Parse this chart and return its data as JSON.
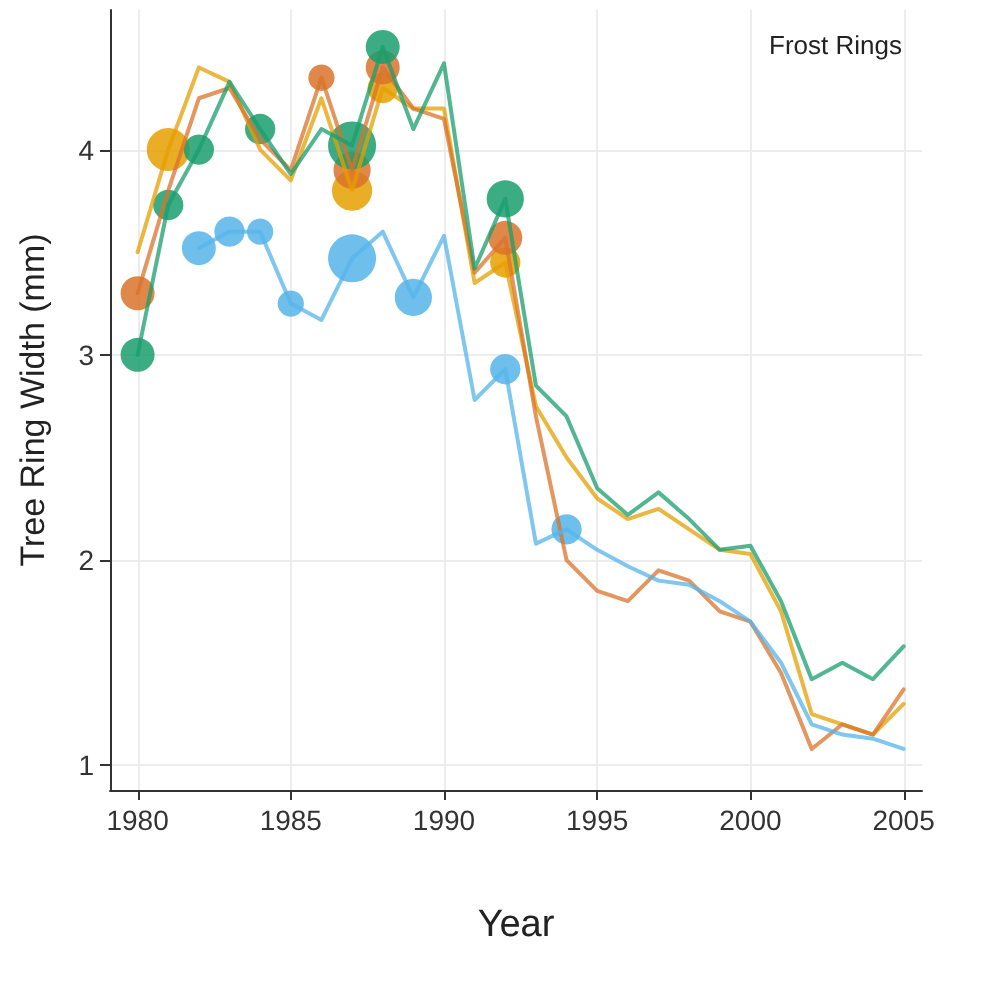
{
  "chart_data": {
    "type": "line",
    "xlabel": "Year",
    "ylabel": "Tree Ring Width (mm)",
    "legend_title": "Frost Rings",
    "grid": true,
    "x": [
      1980,
      1981,
      1982,
      1983,
      1984,
      1985,
      1986,
      1987,
      1988,
      1989,
      1990,
      1991,
      1992,
      1993,
      1994,
      1995,
      1996,
      1997,
      1998,
      1999,
      2000,
      2001,
      2002,
      2003,
      2004,
      2005
    ],
    "xlim": [
      1979.1,
      2005.6
    ],
    "xticks": [
      1980,
      1985,
      1990,
      1995,
      2000,
      2005
    ],
    "ylim": [
      0.88,
      4.68
    ],
    "yticks": [
      1,
      2,
      3,
      4
    ],
    "series": [
      {
        "color": "#e69f00",
        "values": [
          3.5,
          4.0,
          4.4,
          4.33,
          4.0,
          3.85,
          4.25,
          3.8,
          4.3,
          4.2,
          4.2,
          3.35,
          3.45,
          2.75,
          2.5,
          2.3,
          2.2,
          2.25,
          2.15,
          2.05,
          2.03,
          1.75,
          1.25,
          1.2,
          1.15,
          1.3
        ]
      },
      {
        "color": "#d9732a",
        "values": [
          3.3,
          3.8,
          4.25,
          4.3,
          4.05,
          3.9,
          4.35,
          3.9,
          4.4,
          4.2,
          4.15,
          3.4,
          3.57,
          2.7,
          2.0,
          1.85,
          1.8,
          1.95,
          1.9,
          1.75,
          1.7,
          1.45,
          1.08,
          1.2,
          1.15,
          1.37
        ]
      },
      {
        "color": "#56b4e9",
        "values": [
          null,
          null,
          3.52,
          3.6,
          3.6,
          3.25,
          3.17,
          3.47,
          3.6,
          3.28,
          3.58,
          2.78,
          2.93,
          2.08,
          2.15,
          2.05,
          1.97,
          1.9,
          1.88,
          1.8,
          1.7,
          1.5,
          1.2,
          1.15,
          1.13,
          1.08
        ]
      },
      {
        "color": "#1a9e6e",
        "values": [
          3.0,
          3.73,
          4.0,
          4.33,
          4.1,
          3.88,
          4.1,
          4.02,
          4.5,
          4.1,
          4.42,
          3.42,
          3.76,
          2.85,
          2.7,
          2.35,
          2.22,
          2.33,
          2.2,
          2.05,
          2.07,
          1.8,
          1.42,
          1.5,
          1.42,
          1.58
        ]
      },
      {
        "type": "bubble",
        "color": "#e69f00",
        "x": [
          1981,
          1987,
          1988,
          1992
        ],
        "values": [
          4.0,
          3.8,
          4.3,
          3.45
        ],
        "sizes": [
          0.8,
          0.7,
          0.4,
          0.4
        ]
      },
      {
        "type": "bubble",
        "color": "#d9732a",
        "x": [
          1980,
          1986,
          1987,
          1988,
          1992
        ],
        "values": [
          3.3,
          4.35,
          3.9,
          4.4,
          3.57
        ],
        "sizes": [
          0.5,
          0.3,
          0.6,
          0.5,
          0.5
        ]
      },
      {
        "type": "bubble",
        "color": "#56b4e9",
        "x": [
          1982,
          1983,
          1984,
          1985,
          1987,
          1989,
          1992,
          1994
        ],
        "values": [
          3.52,
          3.6,
          3.6,
          3.25,
          3.47,
          3.28,
          2.93,
          2.15
        ],
        "sizes": [
          0.5,
          0.4,
          0.3,
          0.3,
          1,
          0.6,
          0.4,
          0.4
        ]
      },
      {
        "type": "bubble",
        "color": "#1a9e6e",
        "x": [
          1980,
          1981,
          1982,
          1984,
          1987,
          1988,
          1992
        ],
        "values": [
          3.0,
          3.73,
          4.0,
          4.1,
          4.02,
          4.5,
          3.76
        ],
        "sizes": [
          0.5,
          0.4,
          0.4,
          0.4,
          1,
          0.5,
          0.6
        ]
      }
    ]
  }
}
